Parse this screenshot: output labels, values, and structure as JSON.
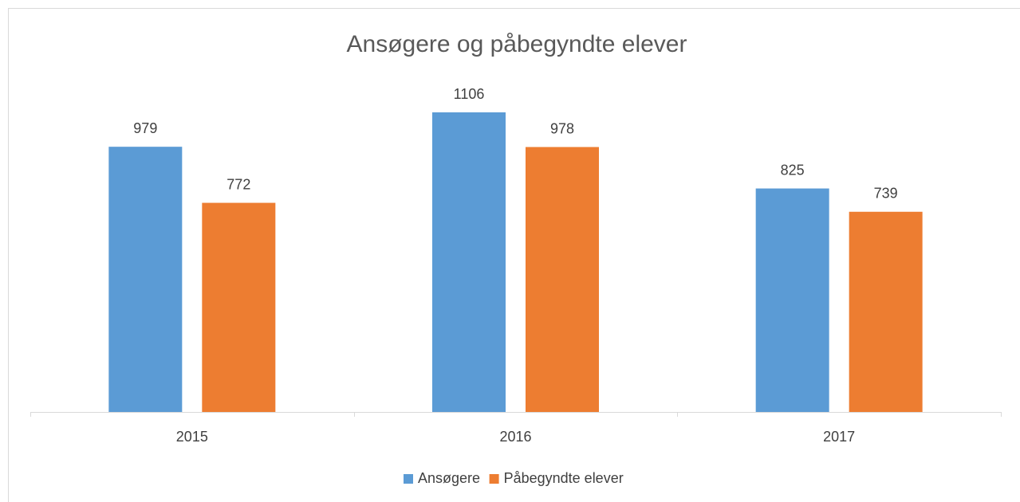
{
  "chart_data": {
    "type": "bar",
    "title": "Ansøgere og påbegyndte elever",
    "categories": [
      "2015",
      "2016",
      "2017"
    ],
    "series": [
      {
        "name": "Ansøgere",
        "color": "#5b9bd5",
        "values": [
          979,
          1106,
          825
        ]
      },
      {
        "name": "Påbegyndte elever",
        "color": "#ed7d31",
        "values": [
          772,
          978,
          739
        ]
      }
    ],
    "legend": "bottom"
  }
}
